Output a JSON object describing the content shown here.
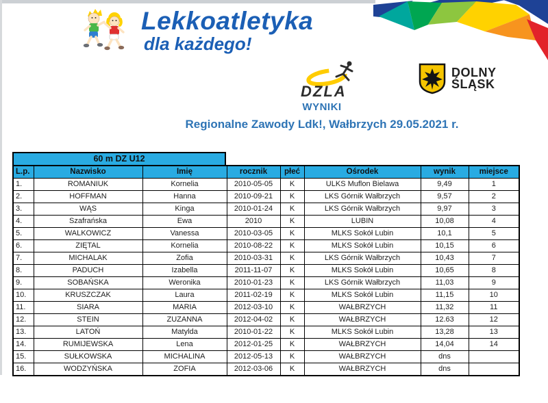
{
  "brand": {
    "logo_title": "Lekkoatletyka",
    "logo_subtitle": "dla każdego!"
  },
  "logos": {
    "dzla_label": "DZLA",
    "dolny_slask_line1": "DOLNY",
    "dolny_slask_line2": "ŚLĄSK"
  },
  "titles": {
    "main": "WYNIKI",
    "subtitle": "Regionalne Zawody Ldk!, Wałbrzych 29.05.2021 r."
  },
  "table": {
    "group_header": "60 m DZ U12",
    "columns": [
      "L.p.",
      "Nazwisko",
      "Imię",
      "rocznik",
      "płeć",
      "Ośrodek",
      "wynik",
      "miejsce"
    ],
    "column_keys": [
      "lp",
      "nazwisko",
      "imie",
      "rocznik",
      "plec",
      "osrodek",
      "wynik",
      "miejsce"
    ],
    "rows": [
      [
        "1.",
        "ROMANIUK",
        "Kornelia",
        "2010-05-05",
        "K",
        "ULKS Muflon Bielawa",
        "9,49",
        "1"
      ],
      [
        "2.",
        "HOFFMAN",
        "Hanna",
        "2010-09-21",
        "K",
        "LKS Górnik Wałbrzych",
        "9,57",
        "2"
      ],
      [
        "3.",
        "WĄS",
        "Kinga",
        "2010-01-24",
        "K",
        "LKS Górnik Wałbrzych",
        "9,97",
        "3"
      ],
      [
        "4.",
        "Szafrańska",
        "Ewa",
        "2010",
        "K",
        "LUBIN",
        "10,08",
        "4"
      ],
      [
        "5.",
        "WALKOWICZ",
        "Vanessa",
        "2010-03-05",
        "K",
        "MLKS Sokół Lubin",
        "10,1",
        "5"
      ],
      [
        "6.",
        "ZIĘTAL",
        "Kornelia",
        "2010-08-22",
        "K",
        "MLKS Sokół Lubin",
        "10,15",
        "6"
      ],
      [
        "7.",
        "MICHALAK",
        "Zofia",
        "2010-03-31",
        "K",
        "LKS Górnik Wałbrzych",
        "10,43",
        "7"
      ],
      [
        "8.",
        "PADUCH",
        "Izabella",
        "2011-11-07",
        "K",
        "MLKS Sokół Lubin",
        "10,65",
        "8"
      ],
      [
        "9.",
        "SOBAŃSKA",
        "Weronika",
        "2010-01-23",
        "K",
        "LKS Górnik Wałbrzych",
        "11,03",
        "9"
      ],
      [
        "10.",
        "KRUSZCZAK",
        "Laura",
        "2011-02-19",
        "K",
        "MLKS Sokół Lubin",
        "11,15",
        "10"
      ],
      [
        "11.",
        "SIARA",
        "MARIA",
        "2012-03-10",
        "K",
        "WAŁBRZYCH",
        "11,32",
        "11"
      ],
      [
        "12.",
        "STEIN",
        "ZUZANNA",
        "2012-04-02",
        "K",
        "WAŁBRZYCH",
        "12.63",
        "12"
      ],
      [
        "13.",
        "LATOŃ",
        "Matylda",
        "2010-01-22",
        "K",
        "MLKS Sokół Lubin",
        "13,28",
        "13"
      ],
      [
        "14.",
        "RUMIJEWSKA",
        "Lena",
        "2012-01-25",
        "K",
        "WAŁBRZYCH",
        "14,04",
        "14"
      ],
      [
        "15.",
        "SUŁKOWSKA",
        "MICHALINA",
        "2012-05-13",
        "K",
        "WAŁBRZYCH",
        "dns",
        ""
      ],
      [
        "16.",
        "WODZYŃSKA",
        "ZOFIA",
        "2012-03-06",
        "K",
        "WAŁBRZYCH",
        "dns",
        ""
      ]
    ]
  },
  "colors": {
    "brand_blue": "#1b5fb5",
    "title_blue": "#2e74b5",
    "header_cyan": "#29abe2",
    "banner_navy": "#1e4296",
    "banner_teal": "#00a79d",
    "banner_green": "#00a651",
    "banner_lime": "#8dc63f",
    "banner_yellow": "#ffd200",
    "banner_orange": "#f7941e",
    "banner_red": "#e2232a",
    "shield_yellow": "#f6c500",
    "swoosh_yellow": "#ffcc00"
  }
}
